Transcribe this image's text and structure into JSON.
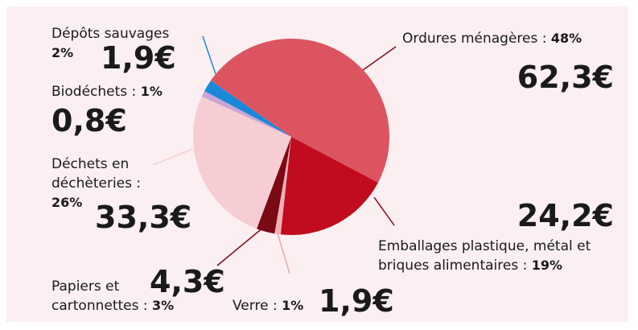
{
  "chart_data": {
    "type": "pie",
    "categories": [
      "Ordures ménagères :",
      "Emballages plastique, métal et briques alimentaires :",
      "Verre :",
      "Papiers et cartonnettes :",
      "Déchets en déchèteries :",
      "Biodéchets :",
      "Dépôts sauvages"
    ],
    "values": [
      48,
      19,
      1,
      3,
      26,
      1,
      2
    ],
    "value_labels": [
      "48%",
      "19%",
      "1%",
      "3%",
      "26%",
      "1%",
      "2%"
    ],
    "amount_labels": [
      "62,3€",
      "24,2€",
      "1,9€",
      "4,3€",
      "33,3€",
      "0,8€",
      "1,9€"
    ],
    "colors": [
      "#dc5460",
      "#c00c1e",
      "#f0b0b8",
      "#7a0a14",
      "#f6cdd2",
      "#c8a5d6",
      "#1a88d8"
    ]
  }
}
